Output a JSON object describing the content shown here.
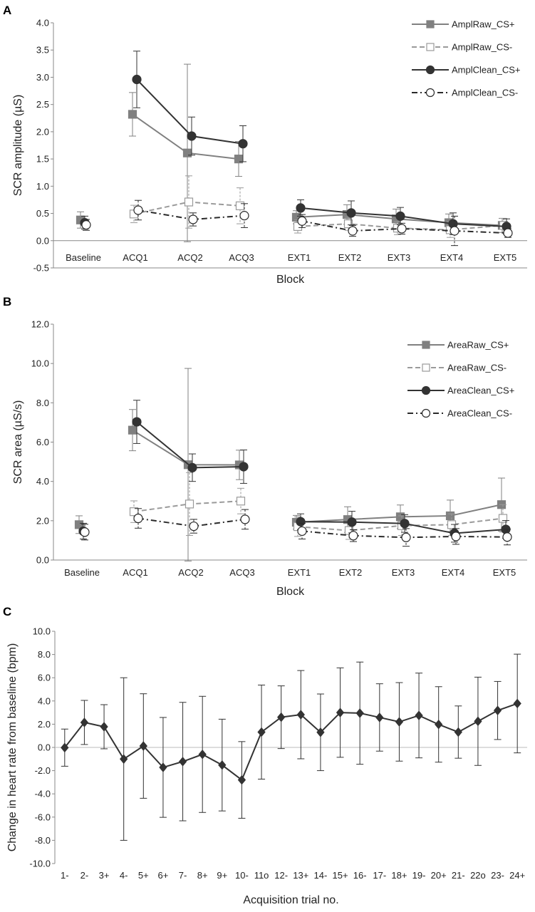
{
  "chart_data": [
    {
      "panel": "A",
      "type": "line",
      "ylabel": "SCR amplitude (µS)",
      "xlabel": "Block",
      "ylim": [
        -0.5,
        4.0
      ],
      "yticks": [
        "-0.5",
        "0.0",
        "0.5",
        "1.0",
        "1.5",
        "2.0",
        "2.5",
        "3.0",
        "3.5",
        "4.0"
      ],
      "categories": [
        "Baseline",
        "ACQ1",
        "ACQ2",
        "ACQ3",
        "EXT1",
        "EXT2",
        "EXT3",
        "EXT4",
        "EXT5"
      ],
      "legend_position": "top-right",
      "series": [
        {
          "name": "AmplRaw_CS+",
          "style": "gray-solid-filled-square",
          "values": [
            0.38,
            2.32,
            1.61,
            1.5,
            0.43,
            0.48,
            0.4,
            0.33,
            0.28
          ],
          "err": [
            0.15,
            0.4,
            1.63,
            0.32,
            0.12,
            0.18,
            0.18,
            0.16,
            0.13
          ]
        },
        {
          "name": "AmplRaw_CS-",
          "style": "gray-dashed-open-square",
          "values": [
            null,
            0.49,
            0.71,
            0.64,
            0.26,
            0.31,
            0.23,
            0.2,
            0.28
          ],
          "err": [
            null,
            0.16,
            0.48,
            0.33,
            0.12,
            0.12,
            0.12,
            0.14,
            0.13
          ]
        },
        {
          "name": "AmplClean_CS+",
          "style": "black-solid-filled-circle",
          "values": [
            0.33,
            2.96,
            1.92,
            1.78,
            0.6,
            0.51,
            0.45,
            0.31,
            0.26
          ],
          "err": [
            0.12,
            0.52,
            0.35,
            0.33,
            0.15,
            0.22,
            0.16,
            0.2,
            0.14
          ]
        },
        {
          "name": "AmplClean_CS-",
          "style": "black-dashdot-open-circle",
          "values": [
            0.29,
            0.56,
            0.39,
            0.46,
            0.36,
            0.18,
            0.22,
            0.18,
            0.14
          ],
          "err": [
            0.1,
            0.18,
            0.12,
            0.22,
            0.12,
            0.1,
            0.1,
            0.27,
            0.08
          ]
        }
      ]
    },
    {
      "panel": "B",
      "type": "line",
      "ylabel": "SCR area (µS/s)",
      "xlabel": "Block",
      "ylim": [
        0.0,
        12.0
      ],
      "yticks": [
        "0.0",
        "2.0",
        "4.0",
        "6.0",
        "8.0",
        "10.0",
        "12.0"
      ],
      "categories": [
        "Baseline",
        "ACQ1",
        "ACQ2",
        "ACQ3",
        "EXT1",
        "EXT2",
        "EXT3",
        "EXT4",
        "EXT5"
      ],
      "legend_position": "top-right",
      "series": [
        {
          "name": "AreaRaw_CS+",
          "style": "gray-solid-filled-square",
          "values": [
            1.8,
            6.61,
            4.85,
            4.84,
            1.92,
            2.06,
            2.2,
            2.25,
            2.82
          ],
          "err": [
            0.45,
            1.05,
            4.9,
            0.75,
            0.35,
            0.65,
            0.6,
            0.8,
            1.35
          ]
        },
        {
          "name": "AreaRaw_CS-",
          "style": "gray-dashed-open-square",
          "values": [
            null,
            2.46,
            2.85,
            3.0,
            1.7,
            1.5,
            1.75,
            1.8,
            2.12
          ],
          "err": [
            null,
            0.55,
            1.6,
            0.65,
            0.5,
            0.45,
            0.5,
            0.55,
            0.7
          ]
        },
        {
          "name": "AreaClean_CS+",
          "style": "black-solid-filled-circle",
          "values": [
            1.47,
            7.03,
            4.7,
            4.75,
            1.95,
            1.93,
            1.86,
            1.36,
            1.56
          ],
          "err": [
            0.4,
            1.1,
            0.7,
            0.85,
            0.4,
            0.55,
            0.45,
            0.45,
            0.45
          ]
        },
        {
          "name": "AreaClean_CS-",
          "style": "black-dashdot-open-circle",
          "values": [
            1.42,
            2.12,
            1.72,
            2.07,
            1.47,
            1.24,
            1.15,
            1.2,
            1.17
          ],
          "err": [
            0.4,
            0.5,
            0.35,
            0.5,
            0.4,
            0.3,
            0.45,
            0.4,
            0.4
          ]
        }
      ]
    },
    {
      "panel": "C",
      "type": "line",
      "ylabel": "Change in heart rate from baseline (bpm)",
      "xlabel": "Acquisition trial no.",
      "ylim": [
        -10.0,
        10.0
      ],
      "yticks": [
        "-10.0",
        "-8.0",
        "-6.0",
        "-4.0",
        "-2.0",
        "0.0",
        "2.0",
        "4.0",
        "6.0",
        "8.0",
        "10.0"
      ],
      "categories": [
        "1-",
        "2-",
        "3+",
        "4-",
        "5+",
        "6+",
        "7-",
        "8+",
        "9+",
        "10-",
        "11o",
        "12-",
        "13+",
        "14-",
        "15+",
        "16-",
        "17-",
        "18+",
        "19-",
        "20+",
        "21-",
        "22o",
        "23-",
        "24+"
      ],
      "series": [
        {
          "name": "",
          "style": "black-solid-diamond",
          "values": [
            -0.02,
            2.15,
            1.78,
            -1.0,
            0.12,
            -1.72,
            -1.22,
            -0.6,
            -1.52,
            -2.8,
            1.32,
            2.6,
            2.82,
            1.3,
            3.0,
            2.95,
            2.58,
            2.2,
            2.75,
            1.98,
            1.32,
            2.25,
            3.18,
            3.78
          ],
          "err": [
            1.6,
            1.9,
            1.9,
            7.0,
            4.5,
            4.3,
            5.1,
            5.0,
            3.95,
            3.3,
            4.05,
            2.7,
            3.8,
            3.3,
            3.85,
            4.4,
            2.9,
            3.38,
            3.65,
            3.25,
            2.25,
            3.8,
            2.5,
            4.25
          ]
        }
      ]
    }
  ]
}
